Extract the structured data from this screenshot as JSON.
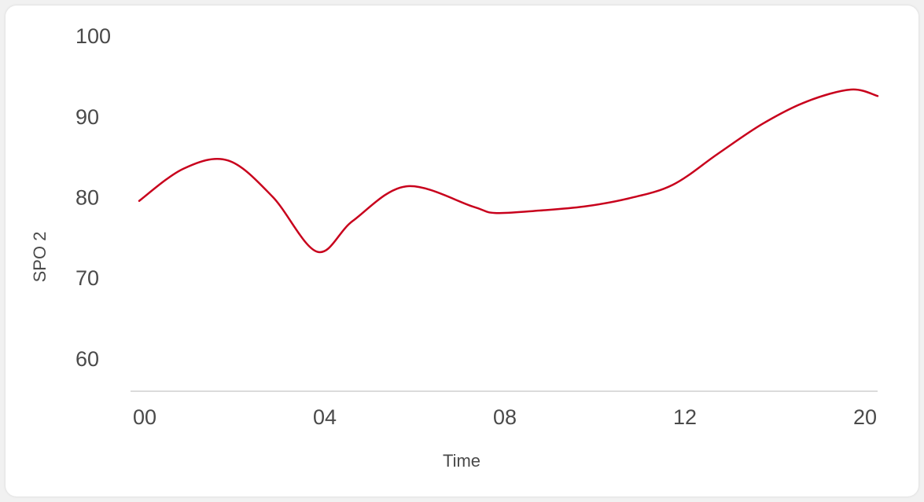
{
  "chart_data": {
    "type": "line",
    "title": "",
    "xlabel": "Time",
    "ylabel": "SPO 2",
    "ylim": [
      55.9,
      104.4
    ],
    "y_ticks": [
      100,
      90,
      80,
      70,
      60
    ],
    "x_ticks": [
      "00",
      "04",
      "08",
      "12",
      "20"
    ],
    "grid": false,
    "legend": "none",
    "line_color": "#c8001c",
    "series": [
      {
        "x": [
          0,
          1,
          2,
          3,
          4,
          4.8,
          6,
          7.5,
          8,
          9,
          10,
          11,
          12,
          13,
          14,
          15,
          16,
          16.6
        ],
        "values": [
          79.5,
          83.5,
          84.5,
          80,
          73.2,
          77,
          81.3,
          78.8,
          78,
          78.3,
          78.8,
          79.8,
          81.5,
          85.3,
          89,
          91.8,
          93.3,
          92.5
        ]
      }
    ]
  }
}
